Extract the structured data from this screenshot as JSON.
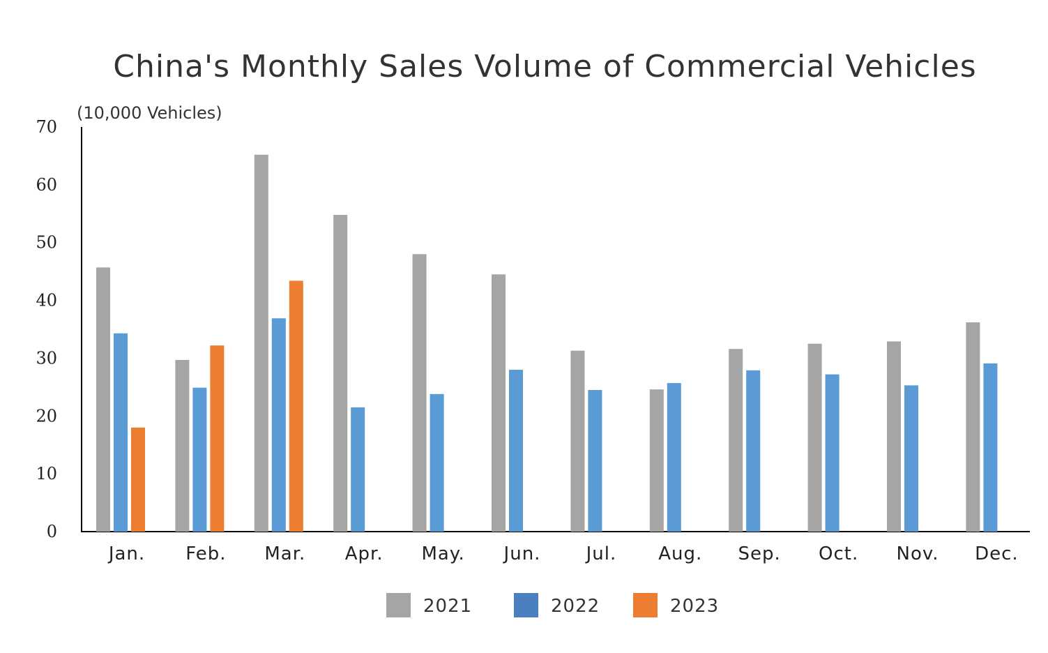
{
  "chart_data": {
    "type": "bar",
    "title": "China's Monthly Sales Volume of Commercial Vehicles",
    "ylabel": "(10,000 Vehicles)",
    "xlabel": "",
    "ylim": [
      0,
      70
    ],
    "yticks": [
      0,
      10,
      20,
      30,
      40,
      50,
      60,
      70
    ],
    "grid": false,
    "legend": "bottom",
    "categories": [
      "Jan.",
      "Feb.",
      "Mar.",
      "Apr.",
      "May.",
      "Jun.",
      "Jul.",
      "Aug.",
      "Sep.",
      "Oct.",
      "Nov.",
      "Dec."
    ],
    "series": [
      {
        "name": "2021",
        "color": "#a5a5a5",
        "legend_color": "#a5a5a5",
        "values": [
          45.7,
          29.7,
          65.2,
          54.8,
          48.0,
          44.5,
          31.3,
          24.6,
          31.6,
          32.5,
          32.9,
          36.2
        ]
      },
      {
        "name": "2022",
        "color": "#5b9bd5",
        "legend_color": "#4a7fc0",
        "values": [
          34.3,
          24.9,
          36.9,
          21.5,
          23.8,
          28.0,
          24.5,
          25.7,
          27.9,
          27.2,
          25.3,
          29.1
        ]
      },
      {
        "name": "2023",
        "color": "#ed7d31",
        "legend_color": "#ed7d31",
        "values": [
          18.0,
          32.2,
          43.4,
          null,
          null,
          null,
          null,
          null,
          null,
          null,
          null,
          null
        ]
      }
    ]
  }
}
